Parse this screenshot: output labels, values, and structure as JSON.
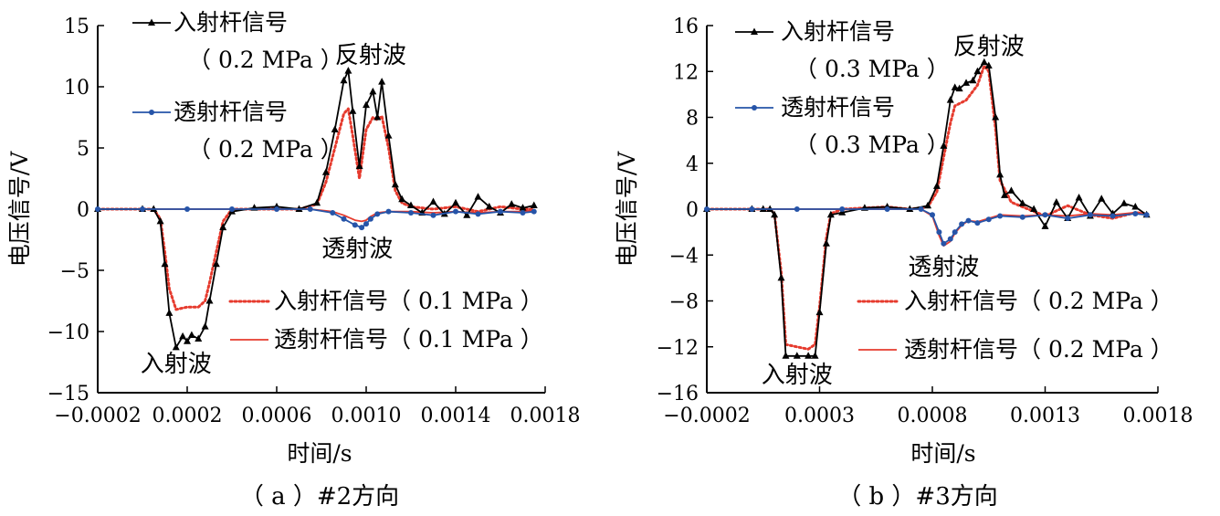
{
  "chart_data": [
    {
      "type": "line",
      "caption": "（ a ）#2方向",
      "xlabel": "时间/s",
      "ylabel": "电压信号/V",
      "xlim": [
        -0.0002,
        0.0018
      ],
      "ylim": [
        -15,
        15
      ],
      "xticks": [
        "−0.0002",
        "0.0002",
        "0.0006",
        "0.0010",
        "0.0014",
        "0.0018"
      ],
      "xtick_values": [
        -0.0002,
        0.0002,
        0.0006,
        0.001,
        0.0014,
        0.0018
      ],
      "yticks": [
        "15",
        "10",
        "5",
        "0",
        "−5",
        "−10",
        "−15"
      ],
      "ytick_values": [
        15,
        10,
        5,
        0,
        -5,
        -10,
        -15
      ],
      "annotations": [
        {
          "text": "反射波",
          "x": 0.00102,
          "y": 12.6
        },
        {
          "text": "透射波",
          "x": 0.00096,
          "y": -3.2
        },
        {
          "text": "入射波",
          "x": 0.00015,
          "y": -12.6
        }
      ],
      "series": [
        {
          "legend_lines": [
            "入射杆信号",
            "（ 0.2 MPa ）"
          ],
          "color": "#000000",
          "style": "solid",
          "marker": "triangle",
          "x": [
            -0.0002,
            0.0,
            5e-05,
            8e-05,
            0.0001,
            0.00012,
            0.00015,
            0.00018,
            0.0002,
            0.00022,
            0.00025,
            0.00028,
            0.0003,
            0.00033,
            0.00036,
            0.0004,
            0.0005,
            0.0006,
            0.0007,
            0.00078,
            0.00082,
            0.00086,
            0.0009,
            0.00092,
            0.00094,
            0.00097,
            0.001,
            0.00103,
            0.00105,
            0.00107,
            0.0011,
            0.00113,
            0.00116,
            0.0012,
            0.00125,
            0.0013,
            0.00135,
            0.0014,
            0.00145,
            0.0015,
            0.00155,
            0.0016,
            0.00165,
            0.0017,
            0.00175
          ],
          "y": [
            0,
            0,
            0,
            -1.0,
            -4.5,
            -8.5,
            -11.3,
            -10.4,
            -10.8,
            -10.3,
            -10.6,
            -9.6,
            -7.5,
            -4.5,
            -1.5,
            -0.2,
            0.1,
            0.2,
            0,
            0.5,
            3.0,
            6.5,
            10.5,
            11.3,
            8.0,
            3.5,
            8.5,
            9.6,
            7.5,
            10.4,
            6.0,
            2.0,
            0.8,
            0.3,
            -0.3,
            0.6,
            -0.4,
            0.5,
            -0.5,
            1.0,
            0.2,
            -0.3,
            0.4,
            0.1,
            0.3
          ]
        },
        {
          "legend_lines": [
            "透射杆信号",
            "（ 0.2 MPa ）"
          ],
          "color": "#2654a8",
          "style": "solid",
          "marker": "circle",
          "x": [
            -0.0002,
            0.0,
            0.0002,
            0.0004,
            0.0006,
            0.00075,
            0.00085,
            0.0009,
            0.00095,
            0.00098,
            0.001,
            0.00102,
            0.00105,
            0.0011,
            0.0012,
            0.0013,
            0.0014,
            0.0015,
            0.0016,
            0.0017,
            0.00175
          ],
          "y": [
            0,
            0,
            0,
            0,
            0,
            0,
            -0.3,
            -0.8,
            -1.3,
            -1.5,
            -1.2,
            -0.8,
            -0.4,
            -0.2,
            -0.3,
            -0.5,
            -0.2,
            -0.4,
            -0.2,
            -0.3,
            -0.2
          ]
        },
        {
          "legend_lines": [
            "入射杆信号（ 0.1 MPa ）"
          ],
          "color": "#e63b2e",
          "style": "dotted",
          "marker": "none",
          "x": [
            -0.0002,
            0.0,
            5e-05,
            8e-05,
            0.0001,
            0.00012,
            0.00015,
            0.0002,
            0.00025,
            0.00028,
            0.0003,
            0.00033,
            0.00036,
            0.0004,
            0.0005,
            0.0006,
            0.0007,
            0.00078,
            0.00082,
            0.00086,
            0.0009,
            0.00092,
            0.00094,
            0.00097,
            0.001,
            0.00103,
            0.00105,
            0.00107,
            0.0011,
            0.00113,
            0.00116,
            0.0012,
            0.0013,
            0.0014,
            0.0015,
            0.0016,
            0.0017,
            0.00175
          ],
          "y": [
            0,
            0,
            0,
            -0.8,
            -3.5,
            -6.5,
            -8.2,
            -8.0,
            -8.0,
            -7.5,
            -6.0,
            -3.5,
            -1.0,
            0,
            0,
            0,
            0,
            0.4,
            2.2,
            5.0,
            7.8,
            8.2,
            6.0,
            2.5,
            6.5,
            7.5,
            7.3,
            7.6,
            5.0,
            1.5,
            0.5,
            0.2,
            0,
            0.2,
            -0.2,
            0.2,
            0,
            0
          ]
        },
        {
          "legend_lines": [
            "透射杆信号（ 0.1 MPa ）"
          ],
          "color": "#e63b2e",
          "style": "solid",
          "marker": "none",
          "x": [
            -0.0002,
            0.0,
            0.0002,
            0.0004,
            0.0006,
            0.00075,
            0.00085,
            0.0009,
            0.00095,
            0.00098,
            0.001,
            0.00102,
            0.00105,
            0.0011,
            0.0012,
            0.0013,
            0.0014,
            0.0015,
            0.0016,
            0.0017,
            0.00175
          ],
          "y": [
            0,
            0,
            0,
            0,
            0,
            0,
            -0.2,
            -0.5,
            -0.9,
            -1.0,
            -0.9,
            -0.6,
            -0.3,
            -0.2,
            -0.2,
            -0.3,
            -0.2,
            -0.3,
            -0.2,
            -0.2,
            -0.1
          ]
        }
      ]
    },
    {
      "type": "line",
      "caption": "（ b ）#3方向",
      "xlabel": "时间/s",
      "ylabel": "电压信号/V",
      "xlim": [
        -0.0002,
        0.0018
      ],
      "ylim": [
        -16,
        16
      ],
      "xticks": [
        "−0.0002",
        "0.0003",
        "0.0008",
        "0.0013",
        "0.0018"
      ],
      "xtick_values": [
        -0.0002,
        0.0003,
        0.0008,
        0.0013,
        0.0018
      ],
      "yticks": [
        "16",
        "12",
        "8",
        "4",
        "0",
        "−4",
        "−8",
        "−12",
        "−16"
      ],
      "ytick_values": [
        16,
        12,
        8,
        4,
        0,
        -4,
        -8,
        -12,
        -16
      ],
      "annotations": [
        {
          "text": "反射波",
          "x": 0.00105,
          "y": 14.2
        },
        {
          "text": "透射波",
          "x": 0.00085,
          "y": -5.0
        },
        {
          "text": "入射波",
          "x": 0.0002,
          "y": -14.4
        }
      ],
      "series": [
        {
          "legend_lines": [
            "入射杆信号",
            "（ 0.3 MPa ）"
          ],
          "color": "#000000",
          "style": "solid",
          "marker": "triangle",
          "x": [
            -0.0002,
            0.0,
            5e-05,
            8e-05,
            0.0001,
            0.00013,
            0.00015,
            0.0002,
            0.00025,
            0.00028,
            0.0003,
            0.00033,
            0.00035,
            0.0004,
            0.0005,
            0.0006,
            0.0007,
            0.00078,
            0.00082,
            0.00085,
            0.00088,
            0.0009,
            0.00092,
            0.00095,
            0.00098,
            0.001,
            0.00103,
            0.00105,
            0.00108,
            0.0011,
            0.00112,
            0.00115,
            0.0012,
            0.00125,
            0.0013,
            0.00135,
            0.0014,
            0.00145,
            0.0015,
            0.00155,
            0.0016,
            0.00165,
            0.0017,
            0.00175
          ],
          "y": [
            0,
            0,
            0,
            0,
            -0.5,
            -6.0,
            -12.8,
            -12.8,
            -12.8,
            -12.8,
            -9.0,
            -3.0,
            -0.5,
            -0.3,
            0.1,
            0.2,
            0,
            0.3,
            2.0,
            5.5,
            9.5,
            10.6,
            10.5,
            11.0,
            11.2,
            12.0,
            12.8,
            12.5,
            8.0,
            3.0,
            1.2,
            1.6,
            0.5,
            0,
            -1.5,
            0.6,
            -0.8,
            1.0,
            -0.6,
            0.9,
            -0.4,
            0.5,
            0.2,
            -0.5
          ]
        },
        {
          "legend_lines": [
            "透射杆信号",
            "（ 0.3 MPa ）"
          ],
          "color": "#2654a8",
          "style": "solid",
          "marker": "circle",
          "x": [
            -0.0002,
            0.0,
            0.0002,
            0.0004,
            0.0006,
            0.00075,
            0.0008,
            0.00083,
            0.00085,
            0.00088,
            0.0009,
            0.00093,
            0.00096,
            0.001,
            0.00105,
            0.0011,
            0.0012,
            0.0013,
            0.0014,
            0.0015,
            0.0016,
            0.0017,
            0.00175
          ],
          "y": [
            0,
            0,
            0,
            0,
            0,
            0,
            -0.5,
            -2.0,
            -3.0,
            -2.6,
            -2.0,
            -1.3,
            -1.0,
            -1.2,
            -0.9,
            -0.6,
            -0.7,
            -0.5,
            -0.8,
            -0.5,
            -0.6,
            -0.4,
            -0.5
          ]
        },
        {
          "legend_lines": [
            "入射杆信号（ 0.2 MPa ）"
          ],
          "color": "#e63b2e",
          "style": "dotted",
          "marker": "none",
          "x": [
            -0.0002,
            0.0,
            5e-05,
            8e-05,
            0.0001,
            0.00013,
            0.00015,
            0.0002,
            0.00025,
            0.00028,
            0.0003,
            0.00033,
            0.00035,
            0.0004,
            0.0005,
            0.0006,
            0.0007,
            0.00078,
            0.00082,
            0.00085,
            0.00088,
            0.0009,
            0.00095,
            0.001,
            0.00103,
            0.00105,
            0.00108,
            0.0011,
            0.00115,
            0.0012,
            0.0013,
            0.0014,
            0.0015,
            0.0016,
            0.0017,
            0.00175
          ],
          "y": [
            0,
            0,
            0,
            0,
            -0.4,
            -5.5,
            -11.8,
            -12.0,
            -12.2,
            -11.8,
            -8.5,
            -2.5,
            -0.4,
            0,
            0.1,
            0.2,
            0,
            0.2,
            1.5,
            4.5,
            7.5,
            9.0,
            9.5,
            10.8,
            12.5,
            12.0,
            7.0,
            2.5,
            0.6,
            0.2,
            -0.6,
            0.3,
            -0.5,
            -0.8,
            -0.3,
            -0.4
          ]
        },
        {
          "legend_lines": [
            "透射杆信号（ 0.2 MPa ）"
          ],
          "color": "#e63b2e",
          "style": "solid",
          "marker": "none",
          "x": [
            -0.0002,
            0.0,
            0.0002,
            0.0004,
            0.0006,
            0.00075,
            0.0008,
            0.00083,
            0.00085,
            0.00088,
            0.0009,
            0.00093,
            0.00096,
            0.001,
            0.00105,
            0.0011,
            0.0012,
            0.0013,
            0.0014,
            0.0015,
            0.0016,
            0.0017,
            0.00175
          ],
          "y": [
            0,
            0,
            0,
            0,
            0,
            0,
            -0.6,
            -2.3,
            -3.2,
            -2.8,
            -2.1,
            -1.4,
            -1.0,
            -1.1,
            -0.8,
            -0.5,
            -0.6,
            -0.5,
            -0.6,
            -0.4,
            -0.5,
            -0.3,
            -0.4
          ]
        }
      ]
    }
  ]
}
